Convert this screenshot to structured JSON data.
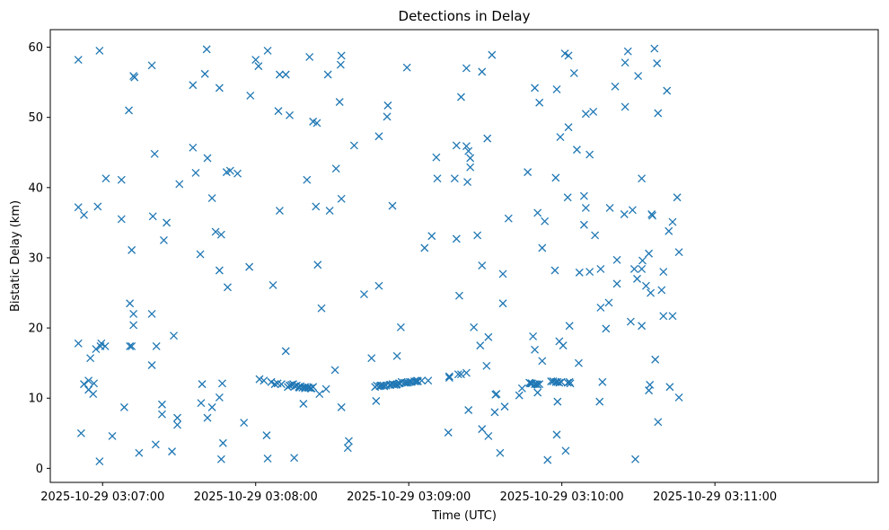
{
  "chart_data": {
    "type": "scatter",
    "title": "Detections in Delay",
    "xlabel": "Time (UTC)",
    "ylabel": "Bistatic Delay (km)",
    "marker": "x",
    "color": "#1f77b4",
    "grid": false,
    "x_unit": "seconds",
    "x_epoch": "2025-10-29 03:06:00",
    "xlim": [
      39.5,
      364
    ],
    "ylim": [
      -2,
      62.5
    ],
    "x_ticks": [
      {
        "value": 60,
        "label": "2025-10-29 03:07:00"
      },
      {
        "value": 120,
        "label": "2025-10-29 03:08:00"
      },
      {
        "value": 180,
        "label": "2025-10-29 03:09:00"
      },
      {
        "value": 240,
        "label": "2025-10-29 03:10:00"
      },
      {
        "value": 300,
        "label": "2025-10-29 03:11:00"
      }
    ],
    "y_ticks": [
      0,
      10,
      20,
      30,
      40,
      50,
      60
    ],
    "points": [
      [
        50.5,
        58.2
      ],
      [
        50.5,
        37.2
      ],
      [
        50.5,
        17.8
      ],
      [
        51.6,
        5.0
      ],
      [
        52.7,
        12.0
      ],
      [
        52.7,
        36.1
      ],
      [
        54.5,
        11.2
      ],
      [
        54.5,
        12.5
      ],
      [
        55.2,
        15.7
      ],
      [
        56.3,
        10.6
      ],
      [
        56.6,
        12.1
      ],
      [
        57.4,
        17.0
      ],
      [
        58.1,
        37.3
      ],
      [
        58.8,
        59.5
      ],
      [
        58.8,
        1.0
      ],
      [
        59.2,
        17.4
      ],
      [
        59.5,
        17.8
      ],
      [
        61.0,
        17.4
      ],
      [
        61.3,
        41.3
      ],
      [
        63.8,
        4.6
      ],
      [
        67.4,
        41.1
      ],
      [
        67.4,
        35.5
      ],
      [
        68.5,
        8.7
      ],
      [
        70.3,
        51.0
      ],
      [
        70.7,
        23.5
      ],
      [
        70.7,
        17.4
      ],
      [
        71.4,
        17.4
      ],
      [
        71.4,
        31.1
      ],
      [
        72.1,
        55.9
      ],
      [
        72.5,
        55.7
      ],
      [
        72.1,
        22.0
      ],
      [
        72.1,
        20.4
      ],
      [
        74.3,
        2.2
      ],
      [
        79.3,
        57.4
      ],
      [
        79.3,
        22.0
      ],
      [
        79.3,
        14.7
      ],
      [
        79.7,
        35.9
      ],
      [
        80.4,
        44.8
      ],
      [
        80.8,
        3.4
      ],
      [
        81.1,
        17.4
      ],
      [
        83.3,
        9.1
      ],
      [
        83.3,
        7.7
      ],
      [
        84.0,
        32.5
      ],
      [
        85.1,
        35.0
      ],
      [
        87.2,
        2.4
      ],
      [
        87.9,
        18.9
      ],
      [
        89.3,
        7.2
      ],
      [
        89.3,
        6.2
      ],
      [
        90.1,
        40.5
      ],
      [
        95.4,
        54.6
      ],
      [
        95.4,
        45.7
      ],
      [
        96.5,
        42.1
      ],
      [
        98.3,
        30.5
      ],
      [
        98.6,
        9.3
      ],
      [
        99.0,
        12.0
      ],
      [
        100.1,
        56.2
      ],
      [
        100.8,
        59.7
      ],
      [
        101.1,
        44.2
      ],
      [
        101.1,
        7.2
      ],
      [
        102.9,
        8.7
      ],
      [
        102.9,
        38.5
      ],
      [
        104.3,
        33.7
      ],
      [
        105.8,
        10.1
      ],
      [
        105.8,
        54.2
      ],
      [
        105.8,
        28.2
      ],
      [
        106.5,
        33.3
      ],
      [
        106.9,
        12.1
      ],
      [
        106.5,
        1.3
      ],
      [
        107.2,
        3.6
      ],
      [
        108.6,
        42.2
      ],
      [
        109.0,
        25.8
      ],
      [
        110.0,
        42.4
      ],
      [
        112.9,
        42.0
      ],
      [
        115.4,
        6.5
      ],
      [
        117.5,
        28.7
      ],
      [
        117.9,
        53.1
      ],
      [
        120.0,
        58.2
      ],
      [
        121.1,
        57.3
      ],
      [
        121.5,
        12.7
      ],
      [
        123.2,
        12.5
      ],
      [
        124.3,
        4.7
      ],
      [
        124.7,
        59.5
      ],
      [
        124.7,
        1.4
      ],
      [
        126.1,
        12.3
      ],
      [
        126.8,
        26.1
      ],
      [
        127.5,
        12.0
      ],
      [
        128.6,
        12.1
      ],
      [
        129.4,
        56.1
      ],
      [
        128.9,
        50.9
      ],
      [
        129.4,
        36.7
      ],
      [
        130.1,
        12.0
      ],
      [
        131.8,
        56.1
      ],
      [
        131.8,
        16.7
      ],
      [
        132.6,
        11.6
      ],
      [
        133.3,
        11.8
      ],
      [
        133.3,
        50.3
      ],
      [
        133.3,
        11.8
      ],
      [
        134.0,
        11.9
      ],
      [
        134.7,
        12.0
      ],
      [
        135.1,
        1.5
      ],
      [
        135.4,
        11.7
      ],
      [
        136.1,
        11.8
      ],
      [
        136.9,
        11.6
      ],
      [
        137.2,
        11.5
      ],
      [
        137.6,
        11.7
      ],
      [
        138.3,
        11.5
      ],
      [
        138.7,
        9.2
      ],
      [
        139.3,
        11.6
      ],
      [
        139.3,
        11.4
      ],
      [
        140.1,
        41.1
      ],
      [
        140.4,
        11.5
      ],
      [
        140.8,
        11.5
      ],
      [
        141.1,
        58.6
      ],
      [
        141.5,
        11.4
      ],
      [
        141.9,
        11.4
      ],
      [
        142.5,
        11.6
      ],
      [
        142.5,
        49.4
      ],
      [
        143.6,
        37.3
      ],
      [
        144.3,
        29.0
      ],
      [
        144.0,
        49.2
      ],
      [
        145.0,
        10.6
      ],
      [
        145.8,
        22.8
      ],
      [
        147.6,
        11.3
      ],
      [
        148.3,
        56.1
      ],
      [
        149.0,
        36.7
      ],
      [
        151.1,
        14.0
      ],
      [
        151.5,
        42.7
      ],
      [
        153.3,
        57.5
      ],
      [
        153.6,
        38.4
      ],
      [
        153.6,
        58.8
      ],
      [
        153.6,
        8.7
      ],
      [
        152.9,
        52.2
      ],
      [
        156.1,
        2.9
      ],
      [
        156.5,
        3.9
      ],
      [
        158.6,
        46.0
      ],
      [
        162.5,
        24.8
      ],
      [
        165.4,
        15.7
      ],
      [
        166.8,
        11.6
      ],
      [
        167.2,
        9.6
      ],
      [
        167.5,
        11.8
      ],
      [
        168.3,
        26.0
      ],
      [
        168.3,
        47.3
      ],
      [
        168.6,
        11.7
      ],
      [
        169.0,
        11.8
      ],
      [
        169.3,
        11.8
      ],
      [
        170.0,
        11.8
      ],
      [
        170.4,
        11.7
      ],
      [
        171.1,
        11.8
      ],
      [
        171.5,
        50.1
      ],
      [
        171.8,
        51.7
      ],
      [
        172.5,
        11.9
      ],
      [
        172.9,
        11.9
      ],
      [
        173.6,
        37.4
      ],
      [
        173.6,
        12.0
      ],
      [
        174.3,
        11.9
      ],
      [
        175.1,
        11.9
      ],
      [
        175.4,
        16.0
      ],
      [
        175.4,
        12.0
      ],
      [
        176.1,
        12.1
      ],
      [
        176.5,
        12.1
      ],
      [
        176.9,
        20.1
      ],
      [
        177.2,
        12.3
      ],
      [
        178.3,
        12.2
      ],
      [
        179.3,
        57.1
      ],
      [
        179.0,
        12.2
      ],
      [
        179.7,
        12.2
      ],
      [
        180.4,
        12.3
      ],
      [
        181.1,
        12.3
      ],
      [
        182.2,
        12.4
      ],
      [
        182.9,
        12.4
      ],
      [
        183.6,
        12.4
      ],
      [
        183.3,
        12.5
      ],
      [
        185.1,
        12.5
      ],
      [
        186.2,
        31.4
      ],
      [
        187.6,
        12.5
      ],
      [
        189.0,
        33.1
      ],
      [
        190.8,
        44.3
      ],
      [
        191.2,
        41.3
      ],
      [
        195.5,
        5.1
      ],
      [
        195.9,
        12.9
      ],
      [
        195.9,
        13.1
      ],
      [
        198.0,
        41.3
      ],
      [
        198.7,
        46.0
      ],
      [
        198.7,
        32.7
      ],
      [
        199.4,
        13.4
      ],
      [
        199.8,
        24.6
      ],
      [
        200.5,
        52.9
      ],
      [
        200.5,
        13.4
      ],
      [
        202.6,
        13.6
      ],
      [
        202.6,
        45.9
      ],
      [
        202.6,
        57.0
      ],
      [
        203.0,
        40.8
      ],
      [
        203.4,
        8.3
      ],
      [
        203.4,
        45.2
      ],
      [
        204.1,
        44.2
      ],
      [
        204.1,
        42.9
      ],
      [
        205.5,
        20.1
      ],
      [
        206.9,
        33.2
      ],
      [
        208.0,
        17.5
      ],
      [
        208.7,
        56.5
      ],
      [
        208.7,
        28.9
      ],
      [
        208.7,
        5.6
      ],
      [
        210.8,
        47.0
      ],
      [
        210.5,
        14.6
      ],
      [
        211.2,
        4.6
      ],
      [
        211.2,
        18.7
      ],
      [
        212.6,
        58.9
      ],
      [
        213.7,
        8.0
      ],
      [
        214.0,
        10.5
      ],
      [
        214.4,
        10.6
      ],
      [
        215.8,
        2.2
      ],
      [
        216.9,
        27.7
      ],
      [
        216.9,
        23.5
      ],
      [
        217.6,
        8.8
      ],
      [
        219.1,
        35.6
      ],
      [
        223.3,
        10.4
      ],
      [
        224.4,
        11.4
      ],
      [
        226.6,
        42.2
      ],
      [
        227.3,
        12.2
      ],
      [
        227.6,
        12.1
      ],
      [
        228.0,
        12.1
      ],
      [
        228.3,
        12.1
      ],
      [
        228.7,
        18.8
      ],
      [
        229.4,
        12.0
      ],
      [
        229.4,
        54.2
      ],
      [
        229.4,
        16.9
      ],
      [
        230.1,
        12.0
      ],
      [
        230.5,
        11.9
      ],
      [
        230.5,
        10.8
      ],
      [
        230.5,
        36.4
      ],
      [
        231.2,
        12.0
      ],
      [
        231.2,
        52.1
      ],
      [
        232.3,
        15.3
      ],
      [
        232.3,
        31.4
      ],
      [
        233.3,
        35.2
      ],
      [
        234.4,
        1.2
      ],
      [
        235.8,
        12.4
      ],
      [
        236.6,
        12.4
      ],
      [
        237.3,
        28.2
      ],
      [
        237.6,
        12.3
      ],
      [
        237.6,
        41.4
      ],
      [
        238.0,
        54.0
      ],
      [
        238.0,
        4.8
      ],
      [
        238.3,
        12.3
      ],
      [
        238.3,
        9.5
      ],
      [
        239.0,
        18.1
      ],
      [
        239.0,
        12.2
      ],
      [
        239.4,
        47.2
      ],
      [
        239.8,
        12.3
      ],
      [
        240.5,
        17.5
      ],
      [
        241.2,
        59.1
      ],
      [
        241.5,
        2.5
      ],
      [
        242.3,
        12.2
      ],
      [
        242.3,
        38.6
      ],
      [
        242.6,
        48.6
      ],
      [
        242.6,
        58.8
      ],
      [
        243.0,
        12.3
      ],
      [
        243.0,
        20.3
      ],
      [
        243.3,
        12.1
      ],
      [
        244.8,
        56.3
      ],
      [
        245.9,
        45.4
      ],
      [
        246.6,
        15.0
      ],
      [
        246.9,
        27.9
      ],
      [
        248.7,
        38.8
      ],
      [
        248.7,
        34.7
      ],
      [
        249.4,
        50.5
      ],
      [
        249.4,
        37.1
      ],
      [
        250.9,
        44.7
      ],
      [
        250.9,
        28.0
      ],
      [
        252.3,
        50.8
      ],
      [
        253.0,
        33.2
      ],
      [
        254.8,
        9.5
      ],
      [
        255.2,
        22.9
      ],
      [
        255.2,
        28.4
      ],
      [
        255.9,
        12.3
      ],
      [
        257.3,
        19.9
      ],
      [
        258.4,
        23.6
      ],
      [
        258.8,
        37.1
      ],
      [
        260.9,
        54.4
      ],
      [
        261.6,
        29.7
      ],
      [
        261.6,
        26.3
      ],
      [
        264.5,
        36.2
      ],
      [
        264.8,
        57.8
      ],
      [
        264.8,
        51.5
      ],
      [
        265.9,
        59.4
      ],
      [
        267.0,
        20.9
      ],
      [
        267.7,
        36.8
      ],
      [
        268.4,
        28.4
      ],
      [
        268.8,
        1.3
      ],
      [
        269.5,
        27.0
      ],
      [
        269.9,
        55.9
      ],
      [
        271.3,
        41.3
      ],
      [
        271.3,
        20.3
      ],
      [
        271.3,
        28.4
      ],
      [
        271.6,
        29.6
      ],
      [
        273.0,
        26.0
      ],
      [
        274.1,
        11.1
      ],
      [
        274.1,
        30.6
      ],
      [
        274.5,
        11.9
      ],
      [
        274.8,
        25.0
      ],
      [
        275.2,
        36.2
      ],
      [
        275.5,
        36.0
      ],
      [
        276.3,
        59.8
      ],
      [
        276.6,
        15.5
      ],
      [
        277.3,
        57.7
      ],
      [
        277.7,
        50.6
      ],
      [
        277.7,
        6.6
      ],
      [
        279.1,
        25.4
      ],
      [
        279.8,
        21.7
      ],
      [
        279.8,
        28.0
      ],
      [
        281.2,
        53.8
      ],
      [
        281.9,
        33.8
      ],
      [
        282.3,
        11.6
      ],
      [
        283.4,
        35.1
      ],
      [
        283.4,
        21.7
      ],
      [
        285.2,
        38.6
      ],
      [
        285.9,
        30.8
      ],
      [
        285.9,
        10.1
      ]
    ]
  }
}
